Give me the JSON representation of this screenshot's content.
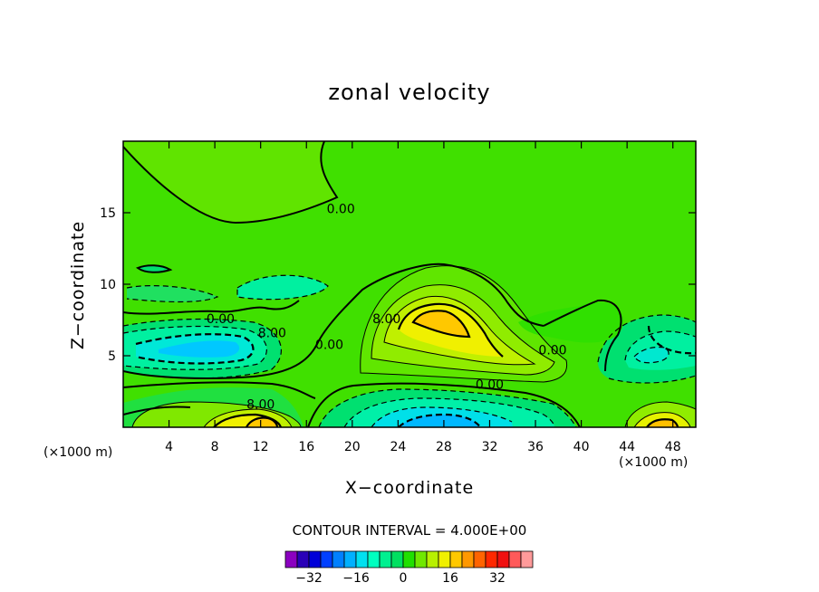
{
  "chart_data": {
    "type": "contour",
    "title": "zonal velocity",
    "xlabel": "X−coordinate",
    "ylabel": "Z−coordinate",
    "x_unit_label": "(×1000 m)",
    "xlim": [
      0,
      50
    ],
    "ylim": [
      0,
      20
    ],
    "x_ticks": [
      4,
      8,
      12,
      16,
      20,
      24,
      28,
      32,
      36,
      40,
      44,
      48
    ],
    "y_ticks": [
      5,
      10,
      15
    ],
    "contour_interval_text": "CONTOUR INTERVAL = 4.000E+00",
    "contour_labels": [
      {
        "text": "0.00",
        "x": 19,
        "y": 15.3
      },
      {
        "text": "0.00",
        "x": 8.5,
        "y": 7.6
      },
      {
        "text": "8.00",
        "x": 13,
        "y": 6.6
      },
      {
        "text": "0.00",
        "x": 18,
        "y": 5.8
      },
      {
        "text": "8.00",
        "x": 23,
        "y": 7.6
      },
      {
        "text": "0.00",
        "x": 37.5,
        "y": 5.4
      },
      {
        "text": "0.00",
        "x": 32,
        "y": 3.0
      },
      {
        "text": "8.00",
        "x": 12,
        "y": 1.6
      }
    ],
    "colorbar": {
      "tick_labels": [
        "−32",
        "−16",
        "0",
        "16",
        "32"
      ],
      "colors": [
        "#8b00c0",
        "#2a00b8",
        "#0000d8",
        "#0040ff",
        "#0080ff",
        "#00b0ff",
        "#00e0f0",
        "#00ffc0",
        "#00f090",
        "#00e060",
        "#20e000",
        "#70e800",
        "#b8f000",
        "#f0f000",
        "#ffc800",
        "#ff9800",
        "#ff6400",
        "#ff2800",
        "#f01010",
        "#ff5a5a",
        "#ff9a9a"
      ]
    }
  }
}
